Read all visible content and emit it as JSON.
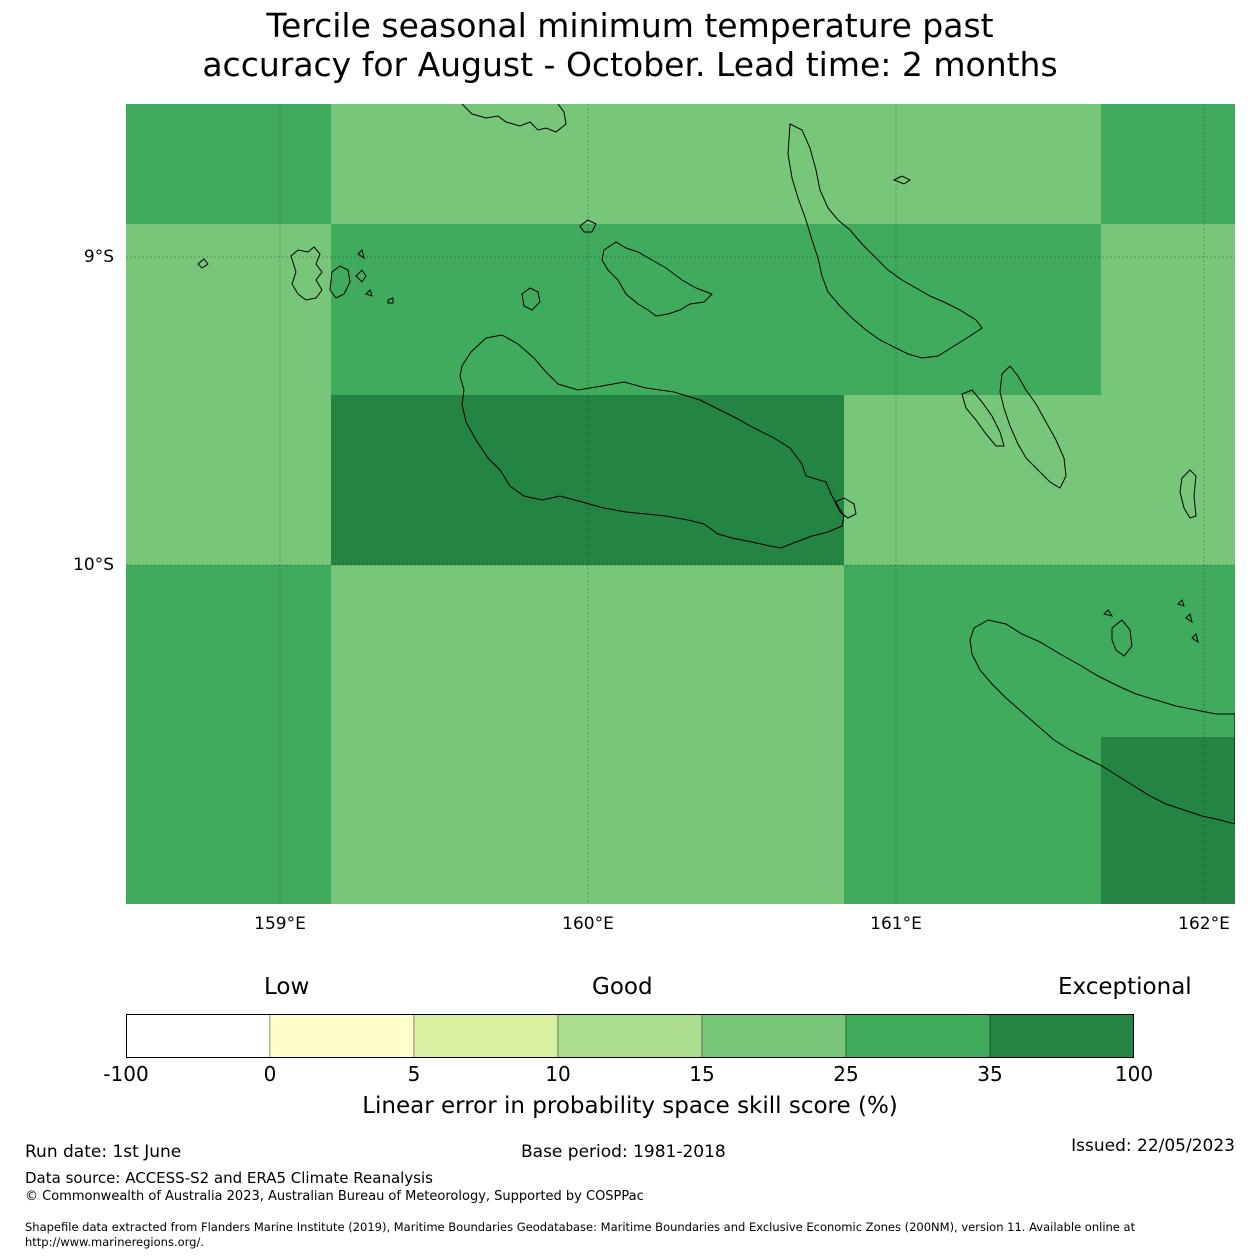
{
  "title": {
    "line1": "Tercile seasonal minimum temperature past",
    "line2": "accuracy for August - October. Lead time: 2 months"
  },
  "map": {
    "lat_labels": [
      "9°S",
      "10°S"
    ],
    "lon_labels": [
      "159°E",
      "160°E",
      "161°E",
      "162°E"
    ],
    "cells": [
      {
        "row": 0,
        "col": 0,
        "bin": 5
      },
      {
        "row": 0,
        "col": 1,
        "bin": 4
      },
      {
        "row": 0,
        "col": 2,
        "bin": 4
      },
      {
        "row": 0,
        "col": 3,
        "bin": 4
      },
      {
        "row": 0,
        "col": 4,
        "bin": 5
      },
      {
        "row": 1,
        "col": 0,
        "bin": 4
      },
      {
        "row": 1,
        "col": 1,
        "bin": 5
      },
      {
        "row": 1,
        "col": 2,
        "bin": 5
      },
      {
        "row": 1,
        "col": 3,
        "bin": 5
      },
      {
        "row": 1,
        "col": 4,
        "bin": 4
      },
      {
        "row": 2,
        "col": 0,
        "bin": 4
      },
      {
        "row": 2,
        "col": 1,
        "bin": 6
      },
      {
        "row": 2,
        "col": 2,
        "bin": 6
      },
      {
        "row": 2,
        "col": 3,
        "bin": 4
      },
      {
        "row": 2,
        "col": 4,
        "bin": 4
      },
      {
        "row": 3,
        "col": 0,
        "bin": 5
      },
      {
        "row": 3,
        "col": 1,
        "bin": 4
      },
      {
        "row": 3,
        "col": 2,
        "bin": 4
      },
      {
        "row": 3,
        "col": 3,
        "bin": 5
      },
      {
        "row": 3,
        "col": 4,
        "bin": 5
      },
      {
        "row": 4,
        "col": 0,
        "bin": 5
      },
      {
        "row": 4,
        "col": 1,
        "bin": 4
      },
      {
        "row": 4,
        "col": 2,
        "bin": 4
      },
      {
        "row": 4,
        "col": 3,
        "bin": 5
      },
      {
        "row": 4,
        "col": 4,
        "bin": 6
      }
    ]
  },
  "colorbar": {
    "captions": {
      "low": "Low",
      "good": "Good",
      "exceptional": "Exceptional"
    },
    "ticks": [
      "-100",
      "0",
      "5",
      "10",
      "15",
      "25",
      "35",
      "100"
    ],
    "colors": [
      "#ffffff",
      "#ffffcc",
      "#d9f0a3",
      "#addd8e",
      "#78c679",
      "#41ab5d",
      "#238443"
    ],
    "label": "Linear error in probability space skill score (%)"
  },
  "footer": {
    "run_date": "Run date: 1st June",
    "base_period": "Base period: 1981-2018",
    "issued": "Issued: 22/05/2023",
    "data_source": "Data source: ACCESS-S2 and ERA5 Climate Reanalysis",
    "copyright": "© Commonwealth of Australia 2023, Australian Bureau of Meteorology, Supported by COSPPac",
    "shapefile_line1": "Shapefile data extracted from Flanders Marine Institute (2019), Maritime Boundaries Geodatabase: Maritime Boundaries and Exclusive Economic Zones (200NM), version 11. Available online at",
    "shapefile_line2": "http://www.marineregions.org/."
  }
}
